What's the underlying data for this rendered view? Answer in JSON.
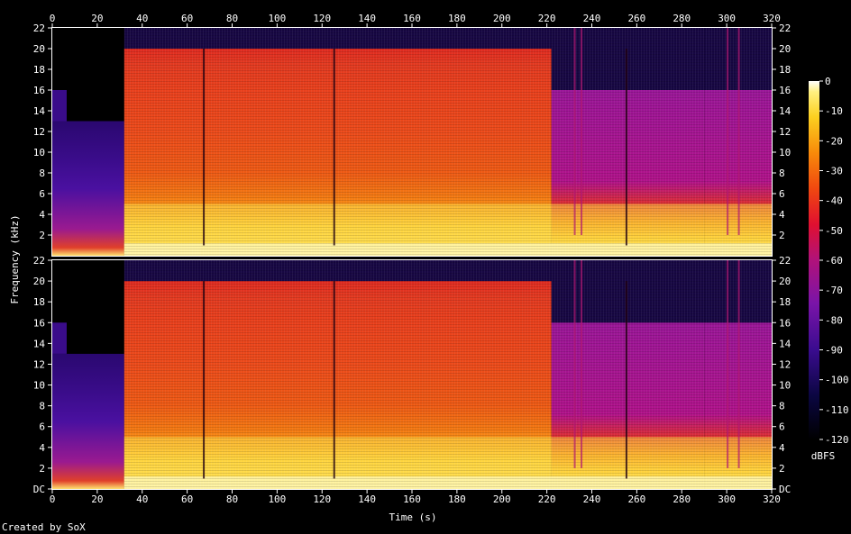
{
  "chart_data": {
    "type": "heatmap",
    "title": "",
    "xlabel": "Time (s)",
    "ylabel": "Frequency (kHz)",
    "x_ticks": [
      "0",
      "20",
      "40",
      "60",
      "80",
      "100",
      "120",
      "140",
      "160",
      "180",
      "200",
      "220",
      "240",
      "260",
      "280",
      "300",
      "320"
    ],
    "xlim": [
      0,
      320
    ],
    "y_ticks_top": [
      "2",
      "4",
      "6",
      "8",
      "10",
      "12",
      "14",
      "16",
      "18",
      "20",
      "22"
    ],
    "y_ticks_bottom": [
      "DC",
      "2",
      "4",
      "6",
      "8",
      "10",
      "12",
      "14",
      "16",
      "18",
      "20",
      "22"
    ],
    "ylim_khz": [
      0,
      22
    ],
    "channels": 2,
    "colorbar": {
      "label": "dBFS",
      "ticks": [
        "0",
        "-10",
        "-20",
        "-30",
        "-40",
        "-50",
        "-60",
        "-70",
        "-80",
        "-90",
        "-100",
        "-110",
        "-120"
      ],
      "range": [
        -120,
        0
      ]
    },
    "segments": [
      {
        "t": [
          0,
          32
        ],
        "kind": "quiet intro",
        "cutoff_khz": 16
      },
      {
        "t": [
          32,
          222
        ],
        "kind": "full band",
        "cutoff_khz": 20
      },
      {
        "t": [
          222,
          290
        ],
        "kind": "mixed",
        "cutoff_khz": 16
      },
      {
        "t": [
          290,
          320
        ],
        "kind": "reduced",
        "cutoff_khz": 16
      }
    ]
  },
  "footer": {
    "credit": "Created by SoX"
  }
}
